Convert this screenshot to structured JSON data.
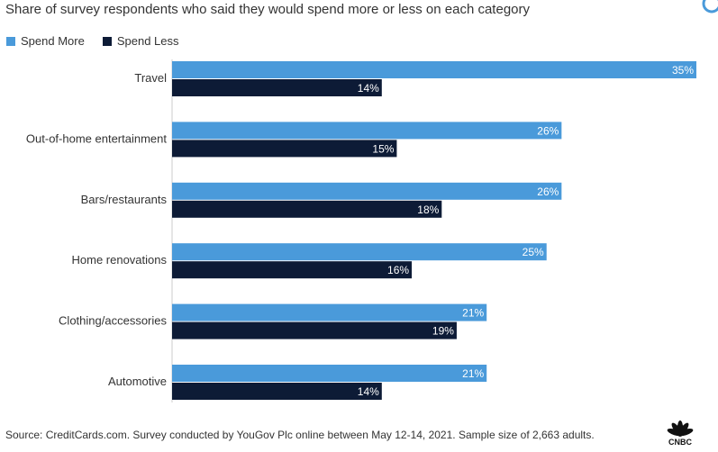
{
  "subtitle": "Share of survey respondents who said they would spend more or less on each category",
  "source": "Source: CreditCards.com. Survey conducted by YouGov Plc online between May 12-14, 2021. Sample size of 2,663 adults.",
  "logo": "CNBC",
  "colors": {
    "spend_more": "#4a9ada",
    "spend_less": "#0d1b36"
  },
  "chart_data": {
    "type": "bar",
    "orientation": "horizontal",
    "categories": [
      "Travel",
      "Out-of-home entertainment",
      "Bars/restaurants",
      "Home renovations",
      "Clothing/accessories",
      "Automotive"
    ],
    "series": [
      {
        "name": "Spend More",
        "values": [
          35,
          26,
          26,
          25,
          21,
          21
        ],
        "labels": [
          "35%",
          "26%",
          "26%",
          "25%",
          "21%",
          "21%"
        ]
      },
      {
        "name": "Spend Less",
        "values": [
          14,
          15,
          18,
          16,
          19,
          14
        ],
        "labels": [
          "14%",
          "15%",
          "18%",
          "16%",
          "19%",
          "14%"
        ]
      }
    ],
    "xlim": [
      0,
      35
    ],
    "grid": false,
    "legend_position": "top-left"
  }
}
